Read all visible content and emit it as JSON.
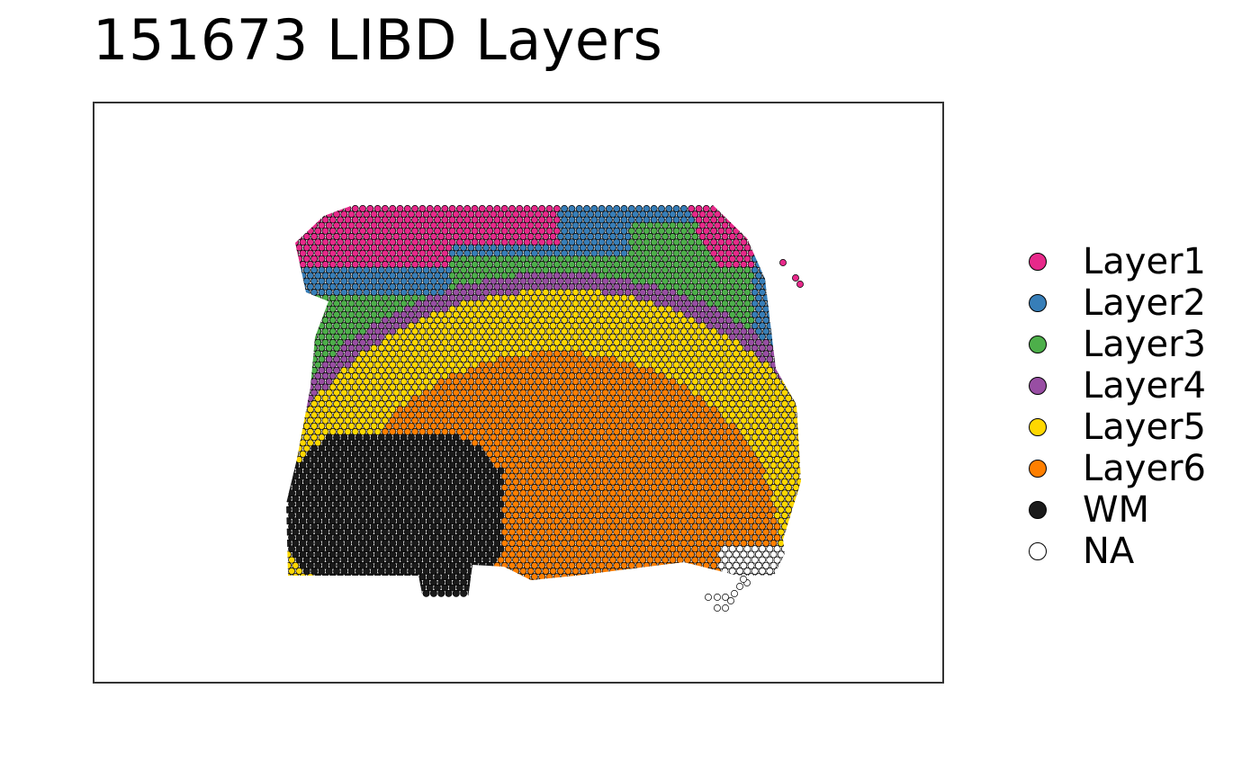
{
  "chart_data": {
    "type": "scatter",
    "title": "151673 LIBD Layers",
    "xlabel": "",
    "ylabel": "",
    "grid": false,
    "legend_position": "right",
    "description": "Spatial spot map of a tissue section with spots colored by cortical layer annotation",
    "categories": [
      "Layer1",
      "Layer2",
      "Layer3",
      "Layer4",
      "Layer5",
      "Layer6",
      "WM",
      "NA"
    ],
    "colors": {
      "Layer1": "#E7298A",
      "Layer2": "#377EB8",
      "Layer3": "#4DAF4A",
      "Layer4": "#984EA3",
      "Layer5": "#FFD700",
      "Layer6": "#FF7F00",
      "WM": "#1A1A1A",
      "NA": "#FFFFFF"
    }
  },
  "legend": {
    "items": [
      {
        "label": "Layer1",
        "color": "#E7298A"
      },
      {
        "label": "Layer2",
        "color": "#377EB8"
      },
      {
        "label": "Layer3",
        "color": "#4DAF4A"
      },
      {
        "label": "Layer4",
        "color": "#984EA3"
      },
      {
        "label": "Layer5",
        "color": "#FFD700"
      },
      {
        "label": "Layer6",
        "color": "#FF7F00"
      },
      {
        "label": "WM",
        "color": "#1A1A1A"
      },
      {
        "label": "NA",
        "color": "#FFFFFF"
      }
    ]
  }
}
